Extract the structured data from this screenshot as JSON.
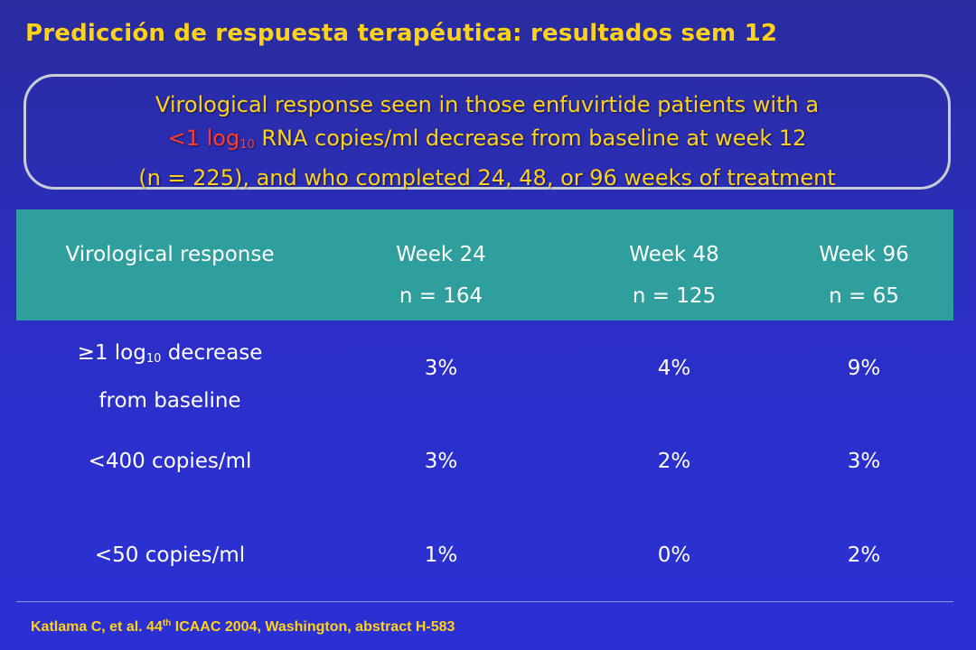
{
  "slide": {
    "title": "Predicción de respuesta terapéutica: resultados sem 12"
  },
  "callout": {
    "line1": "Virological response seen in those enfuvirtide patients with a",
    "line2_red_prefix": "<1 log",
    "line2_red_sub": "10",
    "line2_rest": " RNA copies/ml decrease from baseline at week 12",
    "line3": "(n = 225), and who completed 24, 48, or 96 weeks of treatment"
  },
  "table": {
    "header": {
      "col0": "Virological response",
      "col1_line1": "Week 24",
      "col1_line2": "n = 164",
      "col2_line1": "Week 48",
      "col2_line2": "n = 125",
      "col3_line1": "Week 96",
      "col3_line2": "n = 65"
    },
    "rows": [
      {
        "label_prefix": "≥1 log",
        "label_sub": "10",
        "label_suffix": " decrease",
        "label_line2": "from baseline",
        "week24": "3%",
        "week48": "4%",
        "week96": "9%"
      },
      {
        "label": "<400 copies/ml",
        "week24": "3%",
        "week48": "2%",
        "week96": "3%"
      },
      {
        "label": "<50 copies/ml",
        "week24": "1%",
        "week48": "0%",
        "week96": "2%"
      }
    ]
  },
  "footer": {
    "prefix": "Katlama C, et al. 44",
    "sup": "th",
    "suffix": " ICAAC 2004, Washington, abstract H-583"
  },
  "colors": {
    "background": "#2b2fc9",
    "title_yellow": "#ffd21a",
    "header_teal": "#2f9f9d",
    "callout_red": "#ff3b2a",
    "callout_border": "#c9cdd6"
  }
}
